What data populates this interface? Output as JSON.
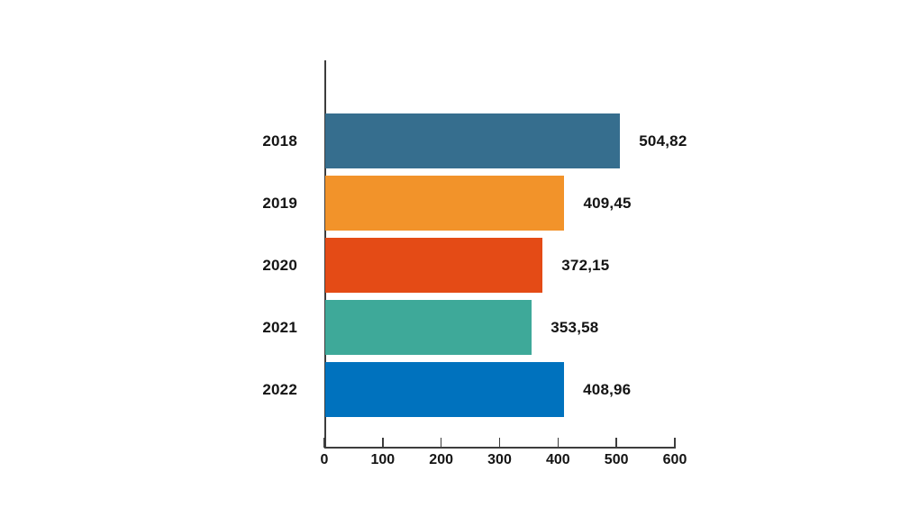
{
  "chart_data": {
    "type": "bar",
    "orientation": "horizontal",
    "title": "",
    "xlabel": "",
    "ylabel": "",
    "legend": "none",
    "grid": false,
    "categories": [
      "2018",
      "2019",
      "2020",
      "2021",
      "2022"
    ],
    "values": [
      504.82,
      409.45,
      372.15,
      353.58,
      408.96
    ],
    "value_labels": [
      "504,82",
      "409,45",
      "372,15",
      "353,58",
      "408,96"
    ],
    "bar_colors": [
      "#366E8E",
      "#F2932A",
      "#E44B16",
      "#3EA999",
      "#0072BE"
    ],
    "x_ticks": [
      0,
      100,
      200,
      300,
      400,
      500,
      600
    ],
    "x_tick_labels": [
      "0",
      "100",
      "200",
      "300",
      "400",
      "500",
      "600"
    ],
    "xlim": [
      0,
      600
    ],
    "axis_color": "#3d3d3d",
    "text_color": "#141414",
    "background_color": "#ffffff"
  }
}
